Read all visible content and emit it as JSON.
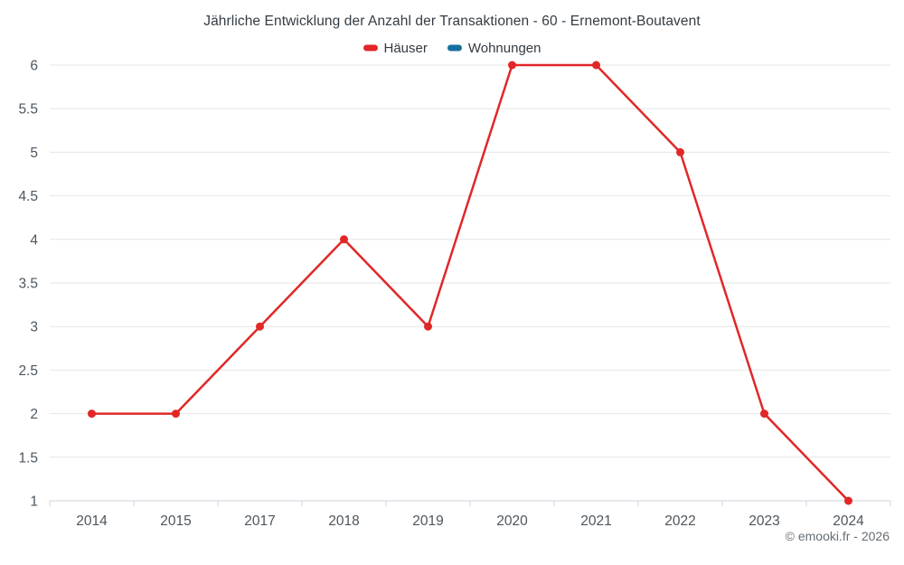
{
  "title": "Jährliche Entwicklung der Anzahl der Transaktionen - 60 - Ernemont-Boutavent",
  "legend": [
    {
      "label": "Häuser",
      "color": "#e12727"
    },
    {
      "label": "Wohnungen",
      "color": "#15709f"
    }
  ],
  "footer": "© emooki.fr - 2026",
  "chart_data": {
    "type": "line",
    "title": "Jährliche Entwicklung der Anzahl der Transaktionen - 60 - Ernemont-Boutavent",
    "categories": [
      "2014",
      "2015",
      "2017",
      "2018",
      "2019",
      "2020",
      "2021",
      "2022",
      "2023",
      "2024"
    ],
    "series": [
      {
        "name": "Häuser",
        "color": "#e12727",
        "values": [
          2,
          2,
          3,
          4,
          3,
          6,
          6,
          5,
          2,
          1
        ]
      },
      {
        "name": "Wohnungen",
        "color": "#15709f",
        "values": []
      }
    ],
    "xlabel": "",
    "ylabel": "",
    "ylim": [
      1,
      6
    ],
    "ytick_step": 0.5,
    "grid": "horizontal",
    "legend_position": "top",
    "axis_text_color": "#4d565e",
    "grid_color": "#e6e6e6",
    "axis_line_color": "#ccd6dd"
  }
}
